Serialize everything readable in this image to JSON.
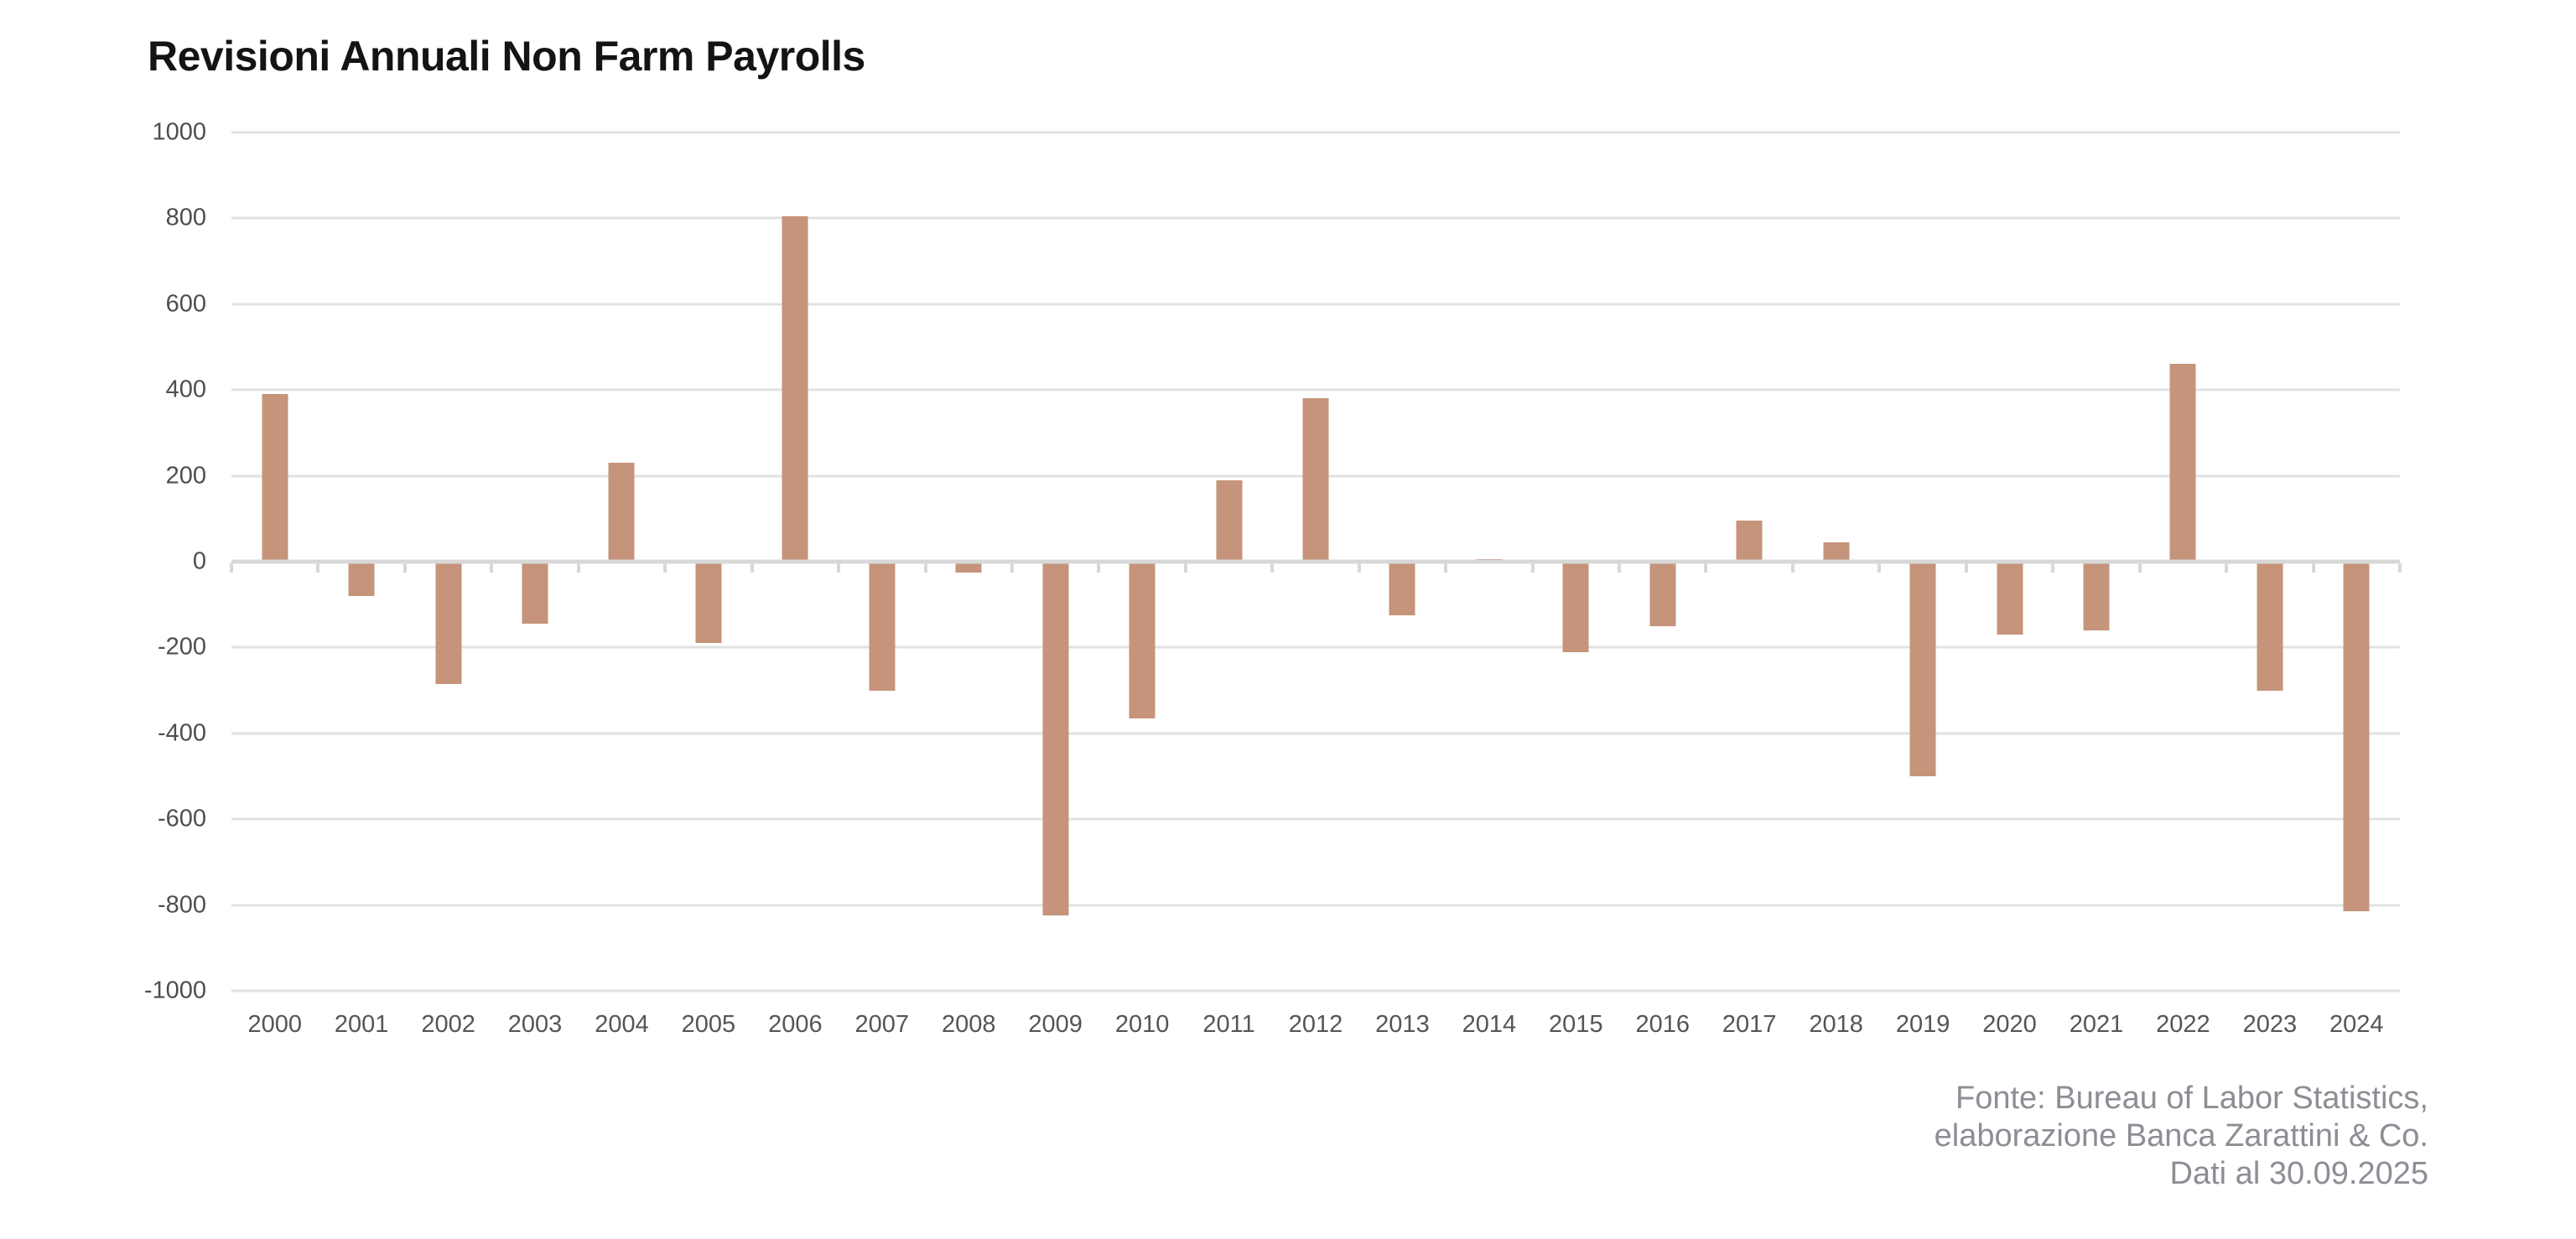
{
  "title": "Revisioni Annuali Non Farm Payrolls",
  "footer": {
    "lines": [
      "Fonte: Bureau of Labor Statistics,",
      "elaborazione Banca Zarattini & Co.",
      "Dati al 30.09.2025"
    ]
  },
  "chart_data": {
    "type": "bar",
    "title": "Revisioni Annuali Non Farm Payrolls",
    "categories": [
      "2000",
      "2001",
      "2002",
      "2003",
      "2004",
      "2005",
      "2006",
      "2007",
      "2008",
      "2009",
      "2010",
      "2011",
      "2012",
      "2013",
      "2014",
      "2015",
      "2016",
      "2017",
      "2018",
      "2019",
      "2020",
      "2021",
      "2022",
      "2023",
      "2024"
    ],
    "values": [
      390,
      -80,
      -285,
      -145,
      230,
      -190,
      805,
      -300,
      -25,
      -825,
      -365,
      190,
      380,
      -125,
      5,
      -210,
      -150,
      95,
      45,
      -500,
      -170,
      -160,
      460,
      -300,
      -815
    ],
    "xlabel": "",
    "ylabel": "",
    "ylim": [
      -1000,
      1000
    ],
    "ytick_step": 200,
    "yticks": [
      "1000",
      "800",
      "600",
      "400",
      "200",
      "0",
      "-200",
      "-400",
      "-600",
      "-800",
      "-1000"
    ],
    "grid": "horizontal",
    "legend": "none",
    "colors": {
      "bar": "#c5947a",
      "gridline": "#e2e2e2",
      "axis": "#d8d8d8",
      "tick_label": "#4e4e4e",
      "title": "#141414",
      "footer": "#8d8d95"
    }
  }
}
